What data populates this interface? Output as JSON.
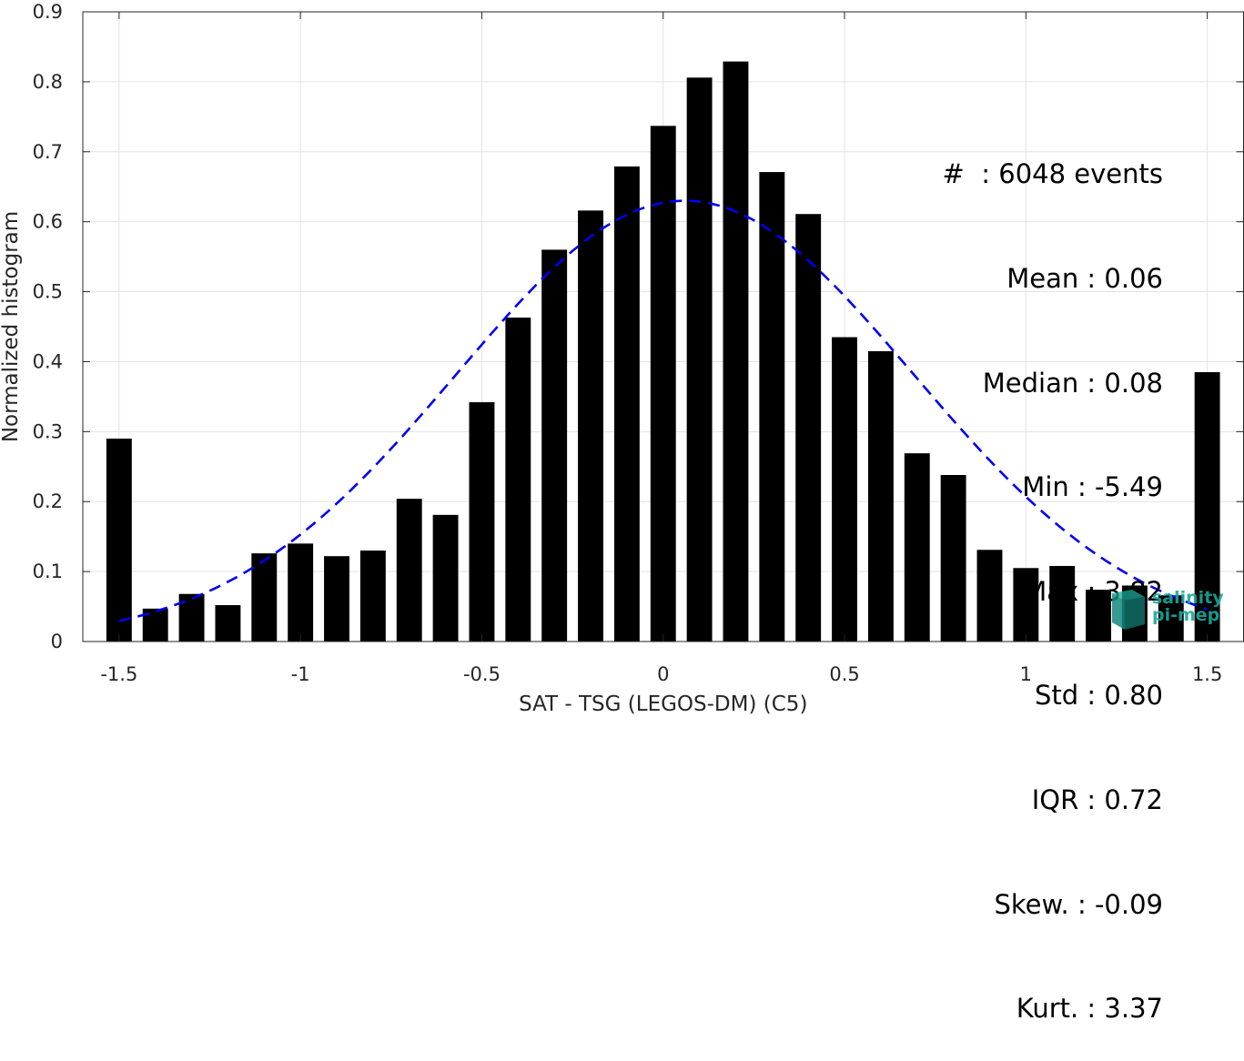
{
  "chart_data": {
    "type": "bar",
    "xlabel": "SAT - TSG (LEGOS-DM) (C5)",
    "ylabel": "Normalized histogram",
    "xlim": [
      -1.6,
      1.6
    ],
    "ylim": [
      0,
      0.9
    ],
    "xticks": [
      -1.5,
      -1,
      -0.5,
      0,
      0.5,
      1,
      1.5
    ],
    "xtick_labels": [
      "-1.5",
      "-1",
      "-0.5",
      "0",
      "0.5",
      "1",
      "1.5"
    ],
    "yticks": [
      0,
      0.1,
      0.2,
      0.3,
      0.4,
      0.5,
      0.6,
      0.7,
      0.8,
      0.9
    ],
    "ytick_labels": [
      "0",
      "0.1",
      "0.2",
      "0.3",
      "0.4",
      "0.5",
      "0.6",
      "0.7",
      "0.8",
      "0.9"
    ],
    "grid": true,
    "bar_color": "#000000",
    "bar_width": 0.07,
    "x": [
      -1.5,
      -1.4,
      -1.3,
      -1.2,
      -1.1,
      -1.0,
      -0.9,
      -0.8,
      -0.7,
      -0.6,
      -0.5,
      -0.4,
      -0.3,
      -0.2,
      -0.1,
      0.0,
      0.1,
      0.2,
      0.3,
      0.4,
      0.5,
      0.6,
      0.7,
      0.8,
      0.9,
      1.0,
      1.1,
      1.2,
      1.3,
      1.4,
      1.5
    ],
    "values": [
      0.29,
      0.047,
      0.068,
      0.052,
      0.126,
      0.14,
      0.122,
      0.13,
      0.204,
      0.181,
      0.342,
      0.463,
      0.56,
      0.616,
      0.679,
      0.737,
      0.806,
      0.829,
      0.671,
      0.611,
      0.435,
      0.415,
      0.269,
      0.238,
      0.131,
      0.105,
      0.108,
      0.074,
      0.08,
      0.066,
      0.385
    ],
    "fit_curve": {
      "style": "dashed",
      "color": "#0000ee",
      "mean": 0.06,
      "std": 0.63,
      "peak": 0.63,
      "x_range": [
        -1.5,
        1.5
      ]
    },
    "stats_box": [
      "#  : 6048 events",
      "Mean : 0.06",
      "Median : 0.08",
      "Min : -5.49",
      "Max : 3.82",
      "Std : 0.80",
      "IQR : 0.72",
      "Skew. : -0.09",
      "Kurt. : 3.37"
    ]
  },
  "logo": {
    "line1": "salinity",
    "line2": "pi-mep",
    "color": "#1aa89a"
  }
}
